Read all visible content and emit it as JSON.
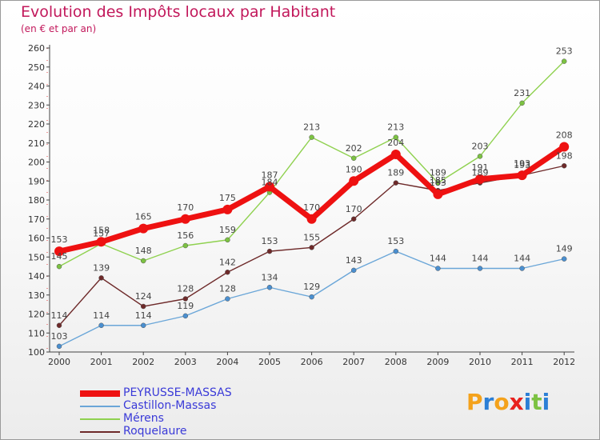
{
  "header": {
    "title": "Evolution des Impôts locaux par Habitant",
    "subtitle": "(en € et par an)"
  },
  "logo": {
    "letters": [
      {
        "ch": "P",
        "color": "#f4a21c"
      },
      {
        "ch": "r",
        "color": "#2c7fd6"
      },
      {
        "ch": "o",
        "color": "#f4a21c"
      },
      {
        "ch": "x",
        "color": "#e8211e"
      },
      {
        "ch": "i",
        "color": "#2c7fd6"
      },
      {
        "ch": "t",
        "color": "#7cc242"
      },
      {
        "ch": "i",
        "color": "#2c7fd6"
      }
    ]
  },
  "chart_data": {
    "type": "line",
    "title": "Evolution des Impôts locaux par Habitant",
    "subtitle": "(en € et par an)",
    "xlabel": "",
    "ylabel": "",
    "ylim": [
      100,
      260
    ],
    "yticks": [
      100,
      110,
      120,
      130,
      140,
      150,
      160,
      170,
      180,
      190,
      200,
      210,
      220,
      230,
      240,
      250,
      260
    ],
    "grid": false,
    "legend_position": "bottom-left",
    "x": [
      "2000",
      "2001",
      "2002",
      "2003",
      "2004",
      "2005",
      "2006",
      "2007",
      "2008",
      "2009",
      "2010",
      "2011",
      "2012"
    ],
    "series": [
      {
        "name": "Mérens",
        "color": "#8fd14f",
        "marker_color": "#7cc242",
        "values": [
          145,
          157,
          148,
          156,
          159,
          184,
          213,
          202,
          213,
          189,
          203,
          231,
          253
        ]
      },
      {
        "name": "Roquelaure",
        "color": "#6e2a2a",
        "marker_color": "#6e2a2a",
        "values": [
          114,
          139,
          124,
          128,
          142,
          153,
          155,
          170,
          189,
          185,
          189,
          193,
          198
        ]
      },
      {
        "name": "Castillon-Massas",
        "color": "#6aa6d8",
        "marker_color": "#4a8fd0",
        "values": [
          103,
          114,
          114,
          119,
          128,
          134,
          129,
          143,
          153,
          144,
          144,
          144,
          149
        ]
      },
      {
        "name": "PEYRUSSE-MASSAS",
        "color": "#ee1111",
        "marker_color": "#ee1111",
        "values": [
          153,
          158,
          165,
          170,
          175,
          187,
          170,
          190,
          204,
          183,
          191,
          193,
          208
        ]
      }
    ],
    "legend_order": [
      "PEYRUSSE-MASSAS",
      "Castillon-Massas",
      "Mérens",
      "Roquelaure"
    ]
  }
}
